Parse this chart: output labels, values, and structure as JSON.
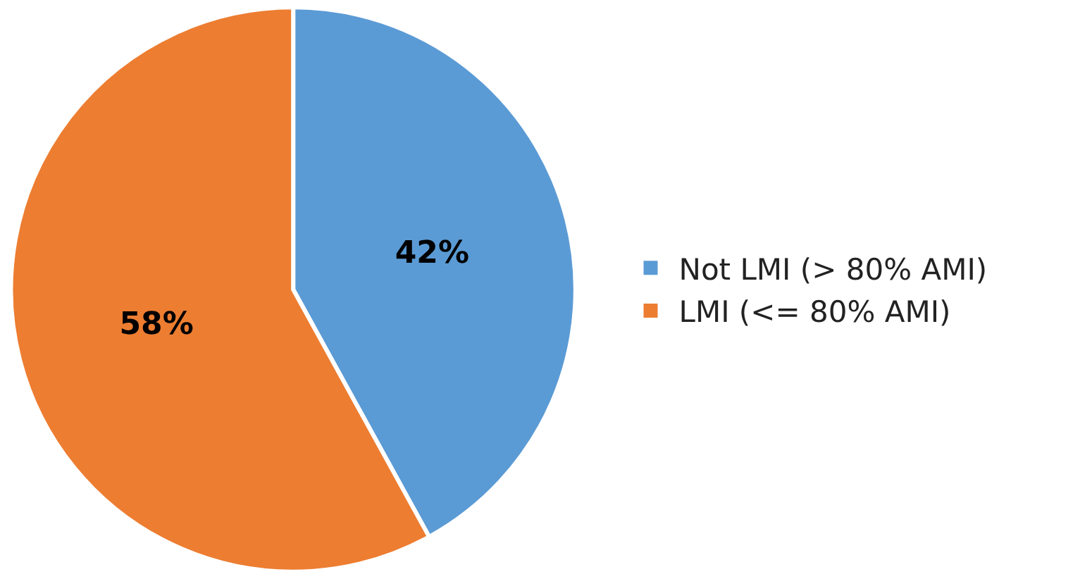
{
  "chart_data": {
    "type": "pie",
    "categories": [
      "Not LMI (> 80% AMI)",
      "LMI (<= 80% AMI)"
    ],
    "values": [
      42,
      58
    ],
    "colors": [
      "#5b9bd5",
      "#ed7d31"
    ],
    "value_labels": [
      "42%",
      "58%"
    ],
    "legend": "right"
  }
}
